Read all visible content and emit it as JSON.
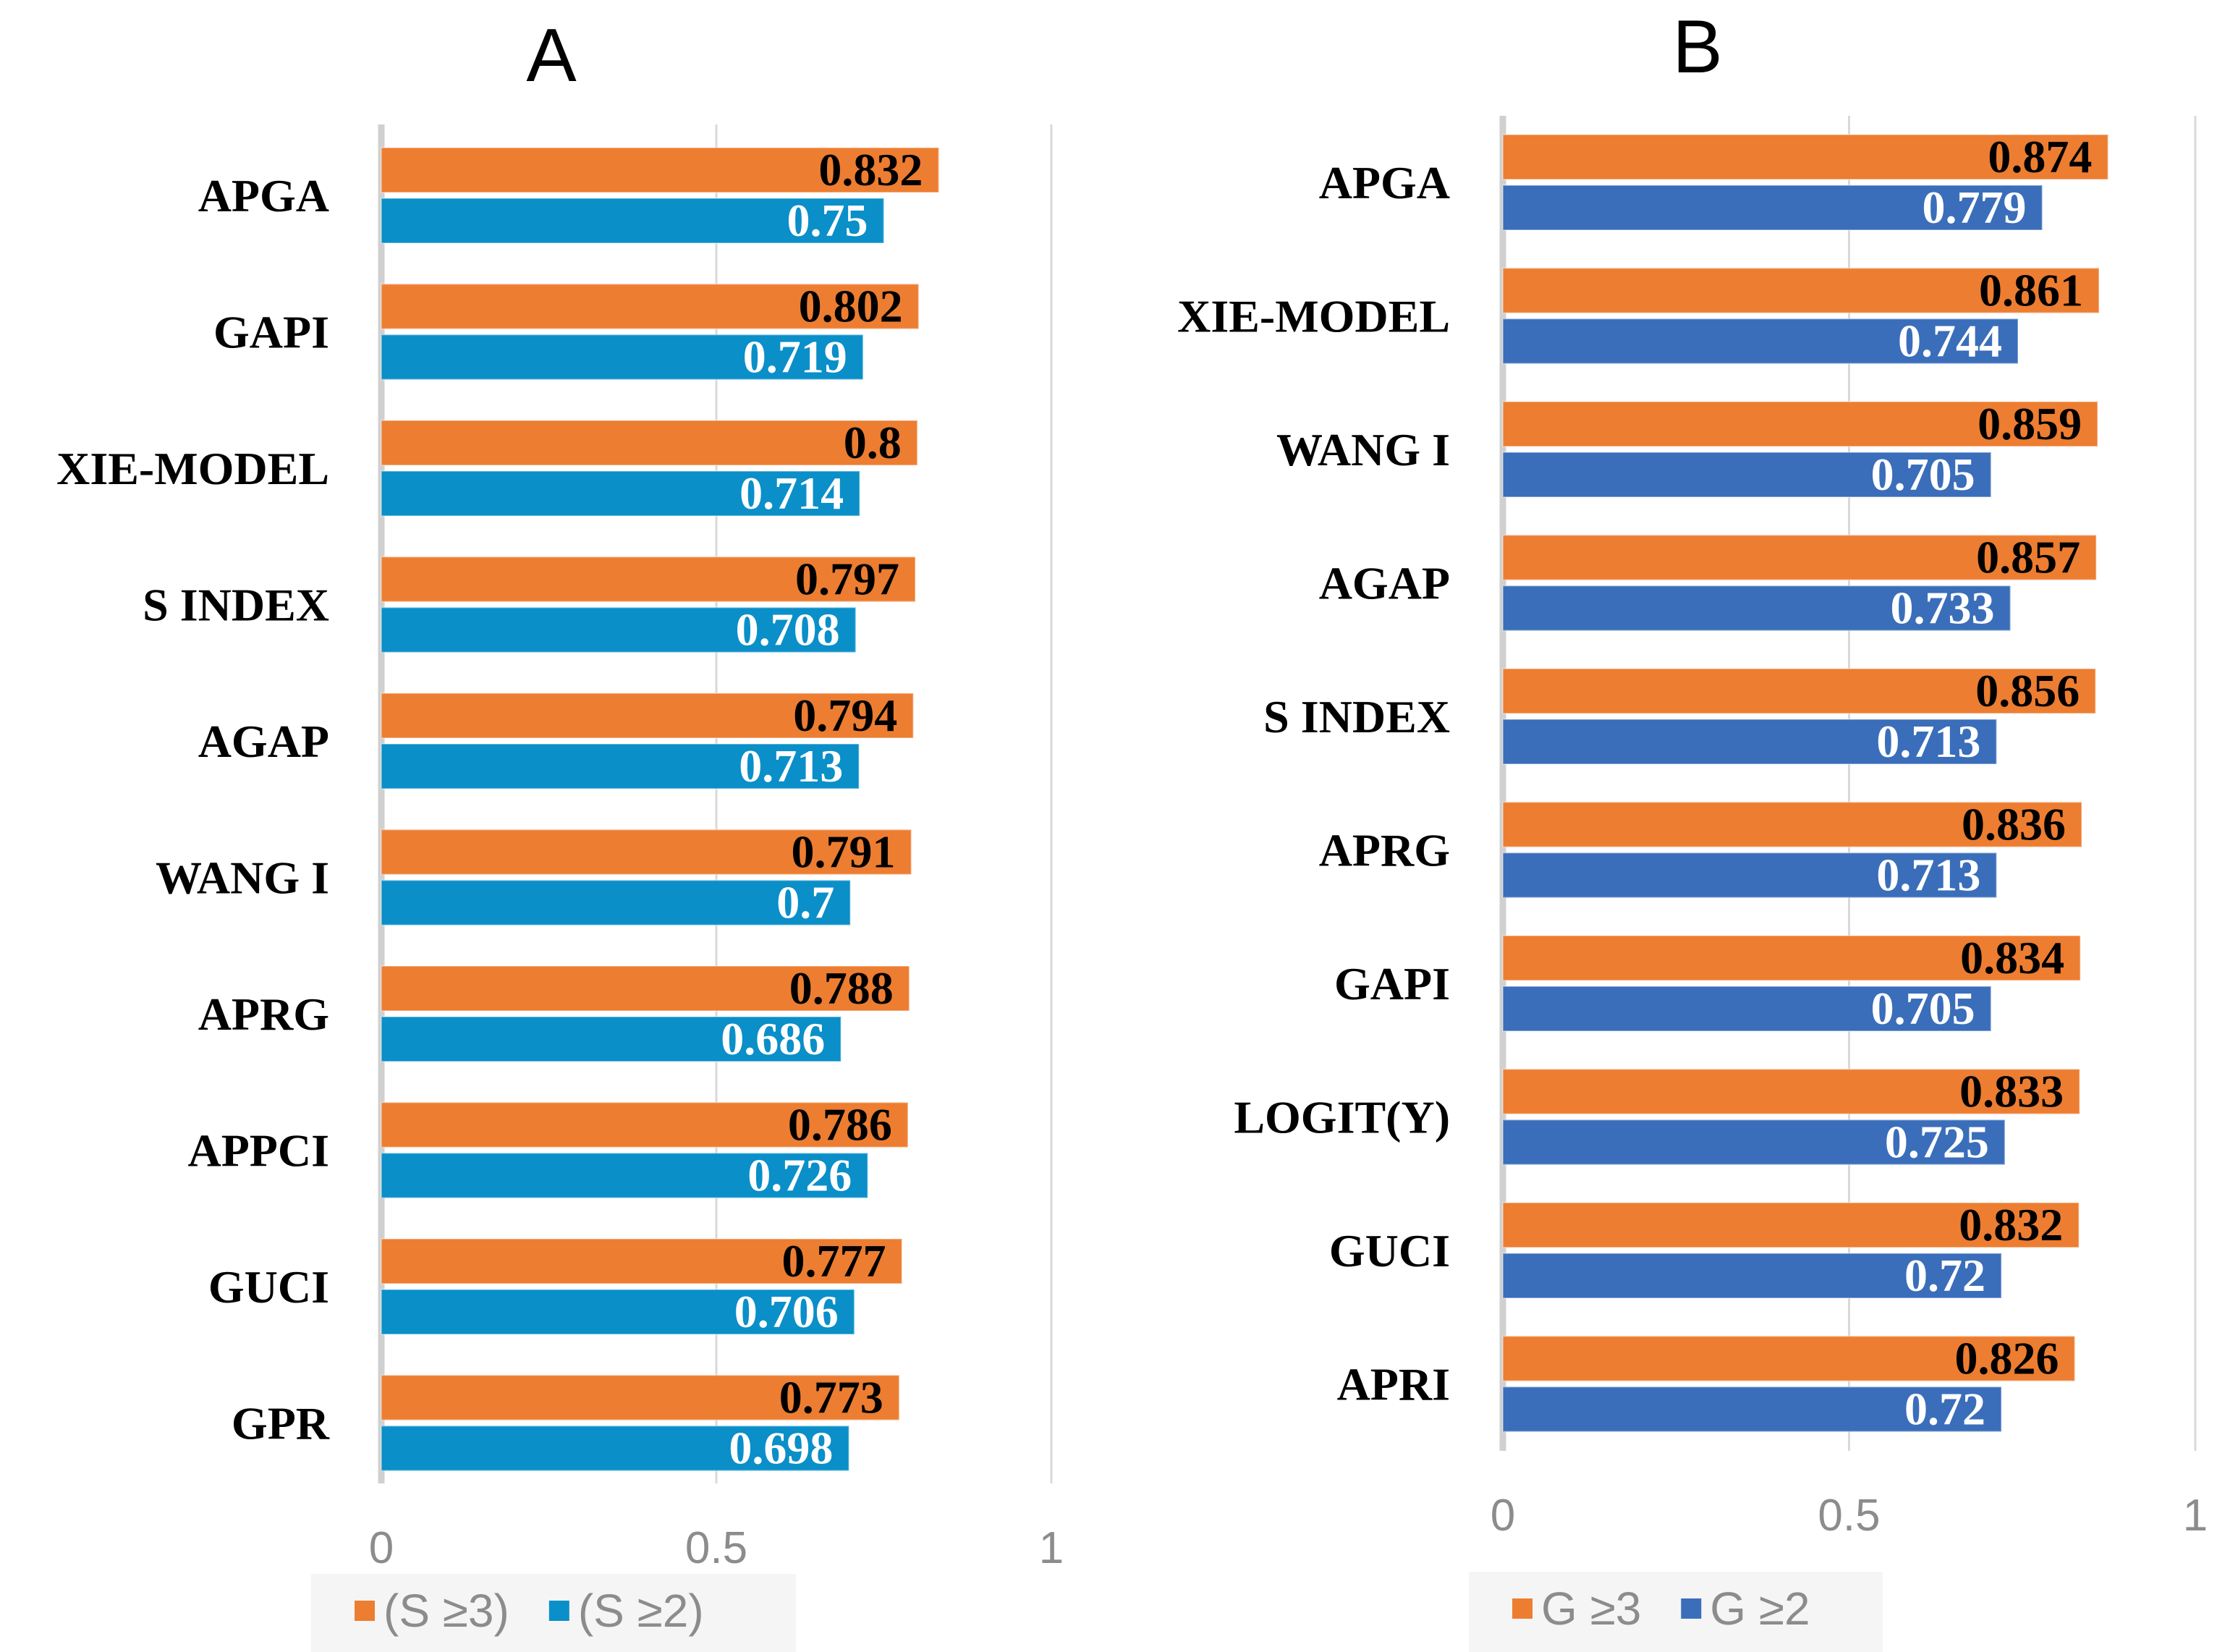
{
  "chart_data": [
    {
      "type": "bar",
      "orientation": "horizontal",
      "title": "A",
      "categories": [
        "APGA",
        "GAPI",
        "XIE-MODEL",
        "S INDEX",
        "AGAP",
        "WANG I",
        "APRG",
        "APPCI",
        "GUCI",
        "GPR"
      ],
      "series": [
        {
          "name": "(S ≥3)",
          "color": "#ED7D31",
          "label_color": "#000000",
          "values": [
            0.832,
            0.802,
            0.8,
            0.797,
            0.794,
            0.791,
            0.788,
            0.786,
            0.777,
            0.773
          ],
          "labels": [
            "0.832",
            "0.802",
            "0.8",
            "0.797",
            "0.794",
            "0.791",
            "0.788",
            "0.786",
            "0.777",
            "0.773"
          ]
        },
        {
          "name": "(S ≥2)",
          "color": "#0A8FC8",
          "label_color": "#ffffff",
          "values": [
            0.75,
            0.719,
            0.714,
            0.708,
            0.713,
            0.7,
            0.686,
            0.726,
            0.706,
            0.698
          ],
          "labels": [
            "0.75",
            "0.719",
            "0.714",
            "0.708",
            "0.713",
            "0.7",
            "0.686",
            "0.726",
            "0.706",
            "0.698"
          ]
        }
      ],
      "xlim": [
        0,
        1
      ],
      "ticks": [
        "0",
        "0.5",
        "1"
      ],
      "grid": true,
      "legend": "bottom"
    },
    {
      "type": "bar",
      "orientation": "horizontal",
      "title": "B",
      "categories": [
        "APGA",
        "XIE-MODEL",
        "WANG I",
        "AGAP",
        "S INDEX",
        "APRG",
        "GAPI",
        "LOGIT(Y)",
        "GUCI",
        "APRI"
      ],
      "series": [
        {
          "name": "G ≥3",
          "color": "#ED7D31",
          "label_color": "#000000",
          "values": [
            0.874,
            0.861,
            0.859,
            0.857,
            0.856,
            0.836,
            0.834,
            0.833,
            0.832,
            0.826
          ],
          "labels": [
            "0.874",
            "0.861",
            "0.859",
            "0.857",
            "0.856",
            "0.836",
            "0.834",
            "0.833",
            "0.832",
            "0.826"
          ]
        },
        {
          "name": "G ≥2",
          "color": "#3A6EBA",
          "label_color": "#ffffff",
          "values": [
            0.779,
            0.744,
            0.705,
            0.733,
            0.713,
            0.713,
            0.705,
            0.725,
            0.72,
            0.72
          ],
          "labels": [
            "0.779",
            "0.744",
            "0.705",
            "0.733",
            "0.713",
            "0.713",
            "0.705",
            "0.725",
            "0.72",
            "0.72"
          ]
        }
      ],
      "xlim": [
        0,
        1
      ],
      "ticks": [
        "0",
        "0.5",
        "1"
      ],
      "grid": true,
      "legend": "bottom"
    }
  ]
}
